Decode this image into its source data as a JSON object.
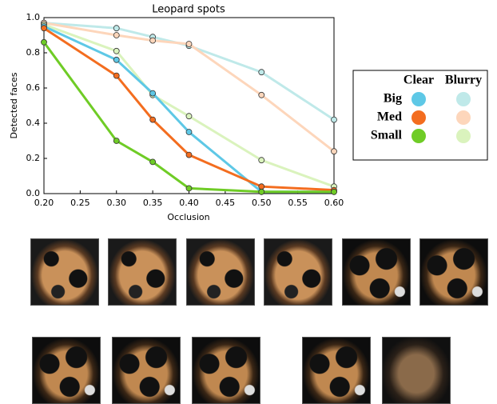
{
  "chart_data": {
    "type": "line",
    "title": "Leopard spots",
    "xlabel": "Occlusion",
    "ylabel": "Detected faces",
    "x": [
      0.2,
      0.3,
      0.35,
      0.4,
      0.5,
      0.6
    ],
    "xlim": [
      0.2,
      0.6
    ],
    "xticks": [
      {
        "value": 0.2,
        "label": "0.20"
      },
      0.25,
      {
        "value": 0.3,
        "label": "0.30"
      },
      0.35,
      {
        "value": 0.4,
        "label": "0.40"
      },
      0.45,
      {
        "value": 0.5,
        "label": "0.50"
      },
      0.55,
      {
        "value": 0.6,
        "label": "0.60"
      }
    ],
    "ylim": [
      0,
      1
    ],
    "yticks": [
      {
        "value": 0,
        "label": "0.0"
      },
      0.2,
      0.4,
      0.6,
      0.8,
      {
        "value": 1,
        "label": "1.0"
      }
    ],
    "grid": false,
    "legend_columns": [
      "Clear",
      "Blurry"
    ],
    "series": [
      {
        "name": "Big",
        "variants": [
          {
            "color": "#5ec8e6",
            "values": [
              0.95,
              0.76,
              0.57,
              0.35,
              0.01,
              0.01
            ]
          },
          {
            "color": "#bfe9e9",
            "values": [
              0.97,
              0.94,
              0.89,
              0.84,
              0.69,
              0.42
            ]
          }
        ]
      },
      {
        "name": "Med",
        "variants": [
          {
            "color": "#f36d1f",
            "values": [
              0.94,
              0.67,
              0.42,
              0.22,
              0.04,
              0.02
            ]
          },
          {
            "color": "#fdd6bb",
            "values": [
              0.97,
              0.9,
              0.87,
              0.85,
              0.56,
              0.24
            ]
          }
        ]
      },
      {
        "name": "Small",
        "variants": [
          {
            "color": "#6fcc26",
            "values": [
              0.86,
              0.3,
              0.18,
              0.03,
              0.01,
              0.01
            ]
          },
          {
            "color": "#daf3bd",
            "values": [
              0.96,
              0.81,
              0.56,
              0.44,
              0.19,
              0.04
            ]
          }
        ]
      }
    ]
  }
}
